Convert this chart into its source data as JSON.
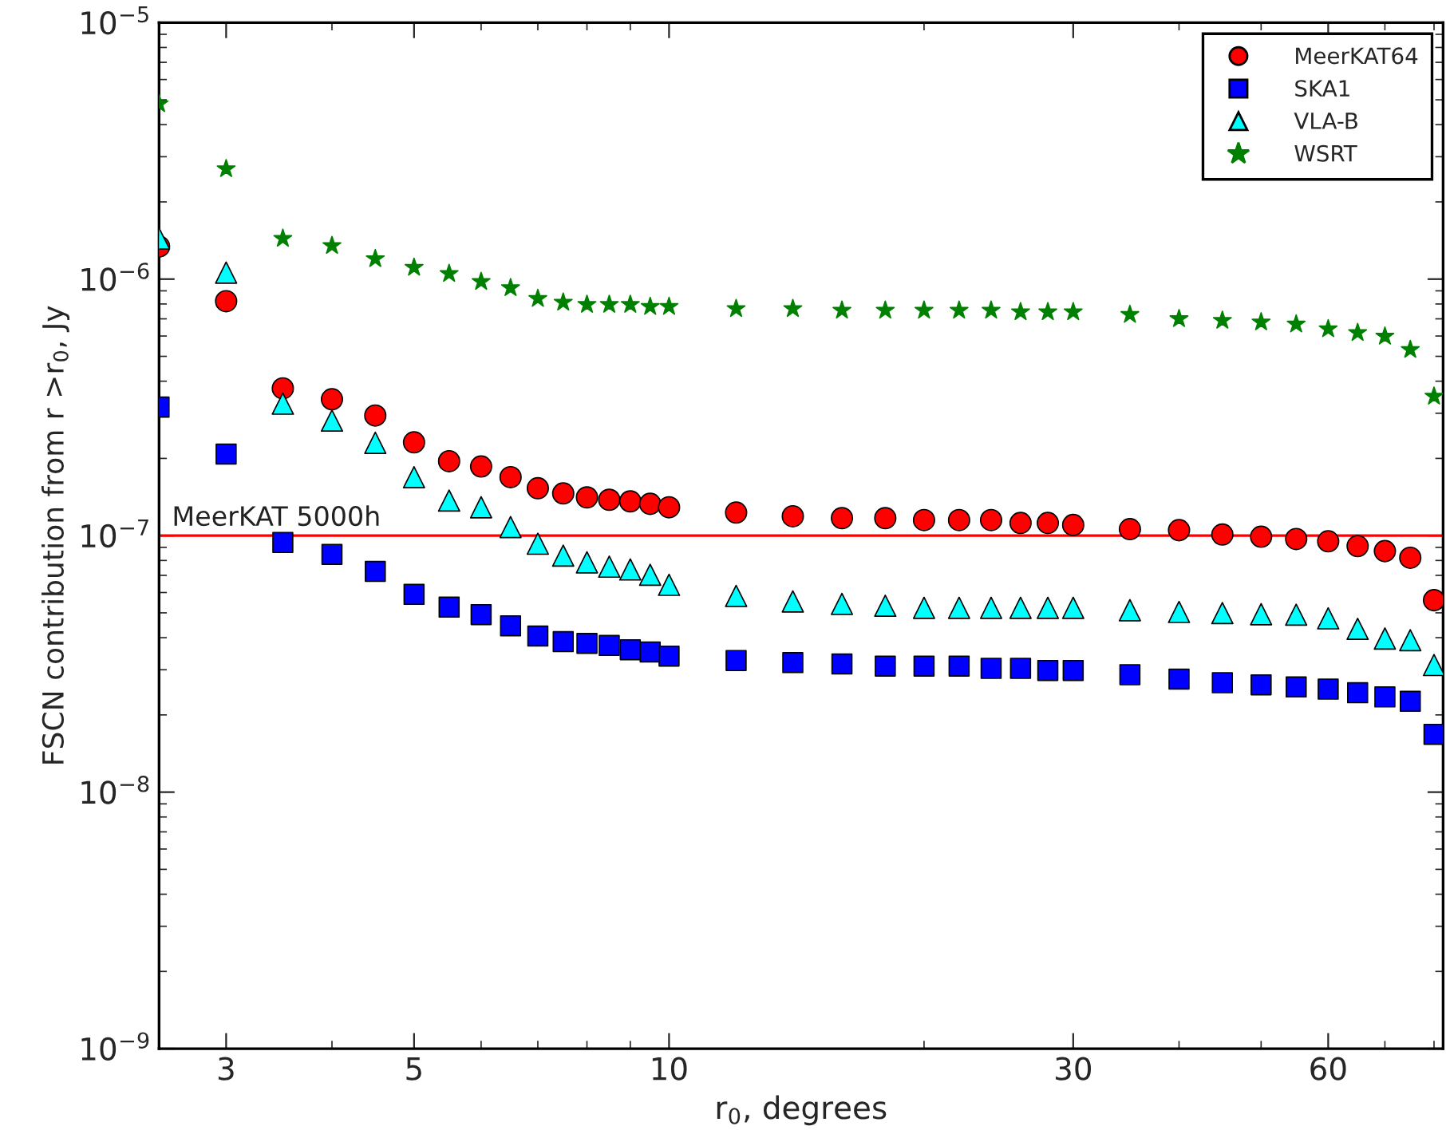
{
  "chart_data": {
    "type": "scatter",
    "xlabel": "r$_{0}$, degrees",
    "ylabel": "FSCN contribution from r >r$_{0}$, Jy",
    "x": [
      2.5,
      3,
      3.5,
      4,
      4.5,
      5,
      5.5,
      6,
      6.5,
      7,
      7.5,
      8,
      8.5,
      9,
      9.5,
      10,
      12,
      14,
      16,
      18,
      20,
      22,
      24,
      26,
      28,
      30,
      35,
      40,
      45,
      50,
      55,
      60,
      65,
      70,
      75,
      80
    ],
    "series": [
      {
        "name": "MeerKAT64",
        "color": "#ff0000",
        "marker": "circle",
        "values": [
          1.34e-06,
          8.2e-07,
          3.75e-07,
          3.4e-07,
          2.94e-07,
          2.31e-07,
          1.95e-07,
          1.86e-07,
          1.69e-07,
          1.53e-07,
          1.46e-07,
          1.41e-07,
          1.38e-07,
          1.36e-07,
          1.33e-07,
          1.29e-07,
          1.23e-07,
          1.19e-07,
          1.17e-07,
          1.17e-07,
          1.15e-07,
          1.15e-07,
          1.15e-07,
          1.12e-07,
          1.12e-07,
          1.1e-07,
          1.06e-07,
          1.05e-07,
          1.01e-07,
          9.9e-08,
          9.7e-08,
          9.5e-08,
          9.1e-08,
          8.7e-08,
          8.2e-08,
          5.6e-08
        ]
      },
      {
        "name": "SKA1",
        "color": "#0000ff",
        "marker": "square",
        "values": [
          3.17e-07,
          2.08e-07,
          9.4e-08,
          8.45e-08,
          7.25e-08,
          5.9e-08,
          5.26e-08,
          4.92e-08,
          4.45e-08,
          4.06e-08,
          3.86e-08,
          3.8e-08,
          3.73e-08,
          3.59e-08,
          3.52e-08,
          3.39e-08,
          3.26e-08,
          3.2e-08,
          3.16e-08,
          3.1e-08,
          3.1e-08,
          3.1e-08,
          3.04e-08,
          3.04e-08,
          2.98e-08,
          2.98e-08,
          2.87e-08,
          2.76e-08,
          2.67e-08,
          2.62e-08,
          2.57e-08,
          2.52e-08,
          2.44e-08,
          2.35e-08,
          2.26e-08,
          1.68e-08
        ]
      },
      {
        "name": "VLA-B",
        "color": "#00ffff",
        "marker": "triangle",
        "values": [
          1.44e-06,
          1.06e-06,
          3.27e-07,
          2.81e-07,
          2.3e-07,
          1.69e-07,
          1.37e-07,
          1.29e-07,
          1.08e-07,
          9.3e-08,
          8.36e-08,
          7.87e-08,
          7.57e-08,
          7.38e-08,
          7.04e-08,
          6.43e-08,
          5.82e-08,
          5.54e-08,
          5.42e-08,
          5.33e-08,
          5.23e-08,
          5.23e-08,
          5.23e-08,
          5.23e-08,
          5.23e-08,
          5.23e-08,
          5.12e-08,
          5.04e-08,
          4.99e-08,
          4.94e-08,
          4.92e-08,
          4.76e-08,
          4.33e-08,
          3.97e-08,
          3.91e-08,
          3.13e-08
        ]
      },
      {
        "name": "WSRT",
        "color": "#008000",
        "marker": "star",
        "values": [
          4.82e-06,
          2.69e-06,
          1.44e-06,
          1.35e-06,
          1.2e-06,
          1.11e-06,
          1.05e-06,
          9.78e-07,
          9.24e-07,
          8.39e-07,
          8.12e-07,
          7.96e-07,
          7.96e-07,
          7.96e-07,
          7.81e-07,
          7.81e-07,
          7.66e-07,
          7.66e-07,
          7.55e-07,
          7.55e-07,
          7.55e-07,
          7.55e-07,
          7.55e-07,
          7.45e-07,
          7.45e-07,
          7.45e-07,
          7.27e-07,
          7e-07,
          6.9e-07,
          6.8e-07,
          6.67e-07,
          6.39e-07,
          6.18e-07,
          5.98e-07,
          5.31e-07,
          3.49e-07
        ]
      }
    ],
    "log": "xy",
    "xlim": [
      2.5,
      82
    ],
    "xticks": [
      3,
      5,
      10,
      30,
      60
    ],
    "ylim": [
      1e-09,
      1e-05
    ],
    "yticks": [
      {
        "value": 1e-09,
        "label": "10$^{−9}$"
      },
      {
        "value": 1e-08,
        "label": "10$^{−8}$"
      },
      {
        "value": 1e-07,
        "label": "10$^{−7}$"
      },
      {
        "value": 1e-06,
        "label": "10$^{−6}$"
      },
      {
        "value": 1e-05,
        "label": "10$^{−5}$"
      }
    ],
    "ref_lines": [
      {
        "axis": "y",
        "value": 1e-07,
        "label": "MeerKAT 5000h",
        "color": "#ff0000",
        "line_style": "solid"
      }
    ],
    "legend": "top right",
    "grid": false
  }
}
